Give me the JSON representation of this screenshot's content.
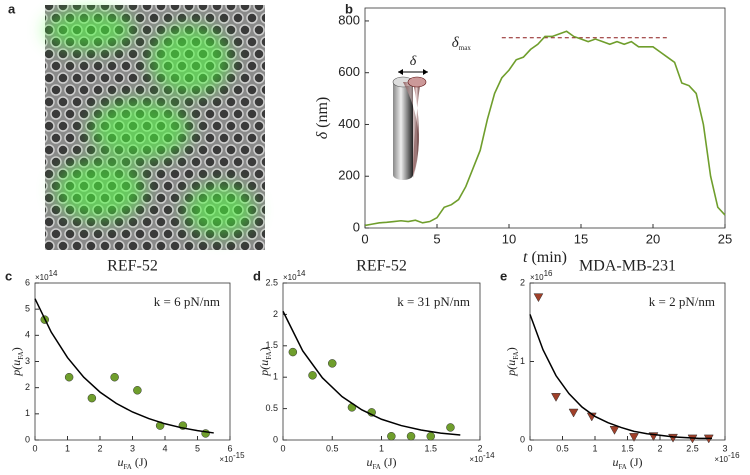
{
  "image_panel": {
    "panel_label": "a"
  },
  "chart_data": [
    {
      "type": "line",
      "panel_label": "b",
      "x_label": {
        "main": "t",
        "end": " (min)"
      },
      "y_label": {
        "main": "δ",
        "end": " (nm)"
      },
      "xlim": [
        0,
        25
      ],
      "xticks": [
        0,
        5,
        10,
        15,
        20,
        25
      ],
      "ylim": [
        0,
        850
      ],
      "yticks": [
        0,
        200,
        400,
        600,
        800
      ],
      "reference_line": {
        "value": 735,
        "x": [
          9.5,
          21
        ],
        "color": "#8b1a1a",
        "label": {
          "main": "δ",
          "sub": "max"
        }
      },
      "inset_label": "δ",
      "series": [
        {
          "style": "line",
          "color": "#6f9e2c",
          "x": [
            0,
            0.5,
            1,
            1.5,
            2,
            2.5,
            3,
            3.5,
            4,
            4.5,
            5,
            5.5,
            6,
            6.5,
            7,
            7.5,
            8,
            8.5,
            9,
            9.5,
            10,
            10.5,
            11,
            11.5,
            12,
            12.5,
            13,
            13.5,
            14,
            14.5,
            15,
            15.5,
            16,
            16.5,
            17,
            17.5,
            18,
            18.5,
            19,
            19.5,
            20,
            20.5,
            21,
            21.5,
            22,
            22.5,
            23,
            23.5,
            24,
            24.5,
            25
          ],
          "values": [
            10,
            15,
            20,
            22,
            25,
            28,
            25,
            30,
            20,
            25,
            40,
            80,
            90,
            110,
            160,
            230,
            300,
            420,
            520,
            580,
            610,
            650,
            660,
            690,
            710,
            740,
            740,
            750,
            760,
            740,
            730,
            720,
            730,
            720,
            710,
            720,
            710,
            720,
            700,
            700,
            700,
            680,
            660,
            640,
            560,
            550,
            520,
            400,
            200,
            80,
            50
          ]
        }
      ]
    },
    {
      "type": "scatter",
      "panel_label": "c",
      "title": "REF-52",
      "annotation": "k = 6 pN/nm",
      "x_label": {
        "main": "u",
        "sub": "FA",
        "end": " (J)"
      },
      "y_label": {
        "main": "p(u",
        "sub": "FA",
        "end": ")"
      },
      "x_exponent": {
        "base": "×10",
        "exp": "-15"
      },
      "y_exponent": {
        "base": "×10",
        "exp": "14"
      },
      "xlim": [
        0,
        6
      ],
      "xticks": [
        0,
        1,
        2,
        3,
        4,
        5,
        6
      ],
      "ylim": [
        0,
        6
      ],
      "yticks": [
        0,
        1,
        2,
        3,
        4,
        5,
        6
      ],
      "series": [
        {
          "marker": "circle",
          "color": "#6f9e2c",
          "x": [
            0.3,
            1.05,
            1.75,
            2.45,
            3.15,
            3.85,
            4.55,
            5.25
          ],
          "values": [
            4.6,
            2.4,
            1.6,
            2.4,
            1.9,
            0.55,
            0.55,
            0.25
          ]
        },
        {
          "style": "line",
          "color": "#000000",
          "x": [
            0,
            0.5,
            1,
            1.5,
            2,
            2.5,
            3,
            3.5,
            4,
            4.5,
            5,
            5.5
          ],
          "values": [
            5.4,
            4.12,
            3.15,
            2.4,
            1.83,
            1.4,
            1.07,
            0.82,
            0.62,
            0.47,
            0.36,
            0.27
          ]
        }
      ]
    },
    {
      "type": "scatter",
      "panel_label": "d",
      "title": "REF-52",
      "annotation": "k = 31 pN/nm",
      "x_label": {
        "main": "u",
        "sub": "FA",
        "end": " (J)"
      },
      "y_label": {
        "main": "p(u",
        "sub": "FA",
        "end": ")"
      },
      "x_exponent": {
        "base": "×10",
        "exp": "-14"
      },
      "y_exponent": {
        "base": "×10",
        "exp": "14"
      },
      "xlim": [
        0,
        2
      ],
      "xticks": [
        0,
        0.5,
        1,
        1.5,
        2
      ],
      "ylim": [
        0,
        2.5
      ],
      "yticks": [
        0,
        0.5,
        1,
        1.5,
        2,
        2.5
      ],
      "series": [
        {
          "marker": "circle",
          "color": "#6f9e2c",
          "x": [
            0.1,
            0.3,
            0.5,
            0.7,
            0.9,
            1.1,
            1.3,
            1.5,
            1.7
          ],
          "values": [
            1.4,
            1.03,
            1.22,
            0.52,
            0.44,
            0.06,
            0.06,
            0.06,
            0.2
          ]
        },
        {
          "style": "line",
          "color": "#000000",
          "x": [
            0,
            0.2,
            0.4,
            0.6,
            0.8,
            1,
            1.2,
            1.4,
            1.6,
            1.8
          ],
          "values": [
            2.05,
            1.42,
            0.99,
            0.69,
            0.48,
            0.33,
            0.23,
            0.16,
            0.11,
            0.08
          ]
        }
      ]
    },
    {
      "type": "scatter",
      "panel_label": "e",
      "title": "MDA-MB-231",
      "annotation": "k = 2 pN/nm",
      "x_label": {
        "main": "u",
        "sub": "FA",
        "end": " (J)"
      },
      "y_label": {
        "main": "p(u",
        "sub": "FA",
        "end": ")"
      },
      "x_exponent": {
        "base": "×10",
        "exp": "-16"
      },
      "y_exponent": {
        "base": "×10",
        "exp": "16"
      },
      "xlim": [
        0,
        3
      ],
      "xticks": [
        0,
        0.5,
        1,
        1.5,
        2,
        2.5,
        3
      ],
      "ylim": [
        0,
        2
      ],
      "yticks": [
        0,
        1,
        2
      ],
      "series": [
        {
          "marker": "triangle",
          "color": "#a0402a",
          "x": [
            0.13,
            0.4,
            0.67,
            0.95,
            1.3,
            1.6,
            1.9,
            2.2,
            2.5,
            2.75
          ],
          "values": [
            1.82,
            0.55,
            0.35,
            0.3,
            0.13,
            0.04,
            0.05,
            0.03,
            0.02,
            0.02
          ]
        },
        {
          "style": "line",
          "color": "#000000",
          "x": [
            0,
            0.2,
            0.4,
            0.6,
            0.8,
            1,
            1.2,
            1.4,
            1.6,
            1.8,
            2,
            2.2,
            2.4,
            2.6,
            2.8
          ],
          "values": [
            1.6,
            1.15,
            0.82,
            0.59,
            0.42,
            0.3,
            0.22,
            0.16,
            0.11,
            0.08,
            0.06,
            0.04,
            0.03,
            0.02,
            0.02
          ]
        }
      ]
    }
  ]
}
